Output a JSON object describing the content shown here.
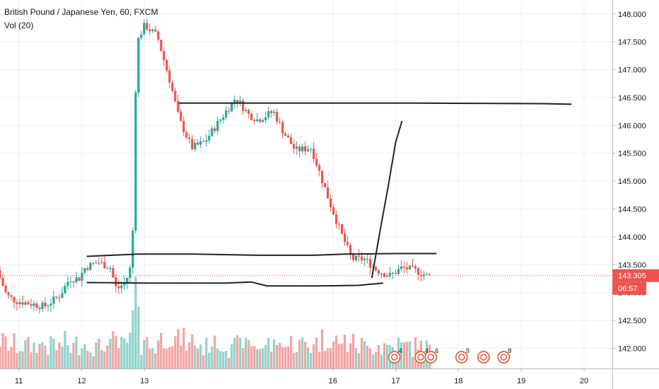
{
  "legend": {
    "symbol": "British Pound / Japanese Yen, 60, FXCM",
    "volume": "Vol (20)"
  },
  "colors": {
    "up": "#26a69a",
    "down": "#ef5350",
    "vol_up": "#8fd3cc",
    "vol_down": "#f4a3a2",
    "line": "#222222",
    "price_tag": "#ef5350",
    "grid": "#eef0f3",
    "event_ring": "#e5734a"
  },
  "chart_data": {
    "type": "candlestick",
    "title": "British Pound / Japanese Yen, 60, FXCM",
    "xlim": [
      10.7,
      20.45
    ],
    "ylim": [
      141.6,
      148.2
    ],
    "y_ticks": [
      142.0,
      142.5,
      143.0,
      143.5,
      144.0,
      144.5,
      145.0,
      145.5,
      146.0,
      146.5,
      147.0,
      147.5,
      148.0
    ],
    "y_tick_labels": [
      "142.000",
      "142.500",
      "143.000",
      "143.500",
      "144.000",
      "144.500",
      "145.000",
      "145.500",
      "146.000",
      "146.500",
      "147.000",
      "147.500",
      "148.000"
    ],
    "x_ticks": [
      11,
      12,
      13,
      16,
      17,
      18,
      19,
      20
    ],
    "x_tick_labels": [
      "11",
      "12",
      "13",
      "16",
      "17",
      "18",
      "19",
      "20"
    ],
    "last_price": 143.305,
    "last_price_label": "143.305",
    "countdown_label": "06:57",
    "grid": true,
    "anchors": [
      [
        10.7,
        143.4
      ],
      [
        10.85,
        142.95
      ],
      [
        11.0,
        142.85
      ],
      [
        11.25,
        142.8
      ],
      [
        11.45,
        142.75
      ],
      [
        11.7,
        142.95
      ],
      [
        11.85,
        143.25
      ],
      [
        12.0,
        143.25
      ],
      [
        12.1,
        143.45
      ],
      [
        12.3,
        143.55
      ],
      [
        12.5,
        143.45
      ],
      [
        12.6,
        143.05
      ],
      [
        12.75,
        143.2
      ],
      [
        12.85,
        143.55
      ],
      [
        12.92,
        147.5
      ],
      [
        13.05,
        147.8
      ],
      [
        13.25,
        147.6
      ],
      [
        13.45,
        146.8
      ],
      [
        13.6,
        146.1
      ],
      [
        13.8,
        145.6
      ],
      [
        14.0,
        145.7
      ],
      [
        14.25,
        146.1
      ],
      [
        14.5,
        146.5
      ],
      [
        14.7,
        146.2
      ],
      [
        14.85,
        146.1
      ],
      [
        15.1,
        146.25
      ],
      [
        15.25,
        145.9
      ],
      [
        15.45,
        145.55
      ],
      [
        15.7,
        145.6
      ],
      [
        15.85,
        145.1
      ],
      [
        16.0,
        144.6
      ],
      [
        16.2,
        144.0
      ],
      [
        16.35,
        143.6
      ],
      [
        16.55,
        143.6
      ],
      [
        16.75,
        143.4
      ],
      [
        16.95,
        143.3
      ],
      [
        17.15,
        143.45
      ],
      [
        17.35,
        143.4
      ],
      [
        17.55,
        143.3
      ]
    ],
    "volume_max": 1,
    "annotations": {
      "resistance_upper": [
        [
          13.55,
          146.4
        ],
        [
          16.2,
          146.4
        ],
        [
          17.3,
          146.4
        ],
        [
          19.4,
          146.39
        ],
        [
          19.8,
          146.38
        ]
      ],
      "resistance_lower": [
        [
          12.08,
          143.65
        ],
        [
          12.9,
          143.69
        ],
        [
          13.8,
          143.69
        ],
        [
          14.8,
          143.67
        ],
        [
          15.7,
          143.67
        ],
        [
          16.2,
          143.69
        ],
        [
          17.0,
          143.7
        ],
        [
          17.65,
          143.7
        ]
      ],
      "support": [
        [
          12.08,
          143.18
        ],
        [
          13.0,
          143.17
        ],
        [
          14.3,
          143.17
        ],
        [
          14.7,
          143.19
        ],
        [
          14.95,
          143.12
        ],
        [
          15.8,
          143.12
        ],
        [
          16.4,
          143.13
        ],
        [
          16.8,
          143.17
        ]
      ],
      "projection": [
        [
          16.62,
          143.26
        ],
        [
          16.75,
          144.1
        ],
        [
          16.88,
          144.9
        ],
        [
          17.0,
          145.7
        ],
        [
          17.1,
          146.08
        ]
      ]
    },
    "events": [
      {
        "x": 16.98,
        "label": "4"
      },
      {
        "x": 17.4,
        "label": "4"
      },
      {
        "x": 17.56,
        "label": "6"
      },
      {
        "x": 18.05,
        "label": "9"
      },
      {
        "x": 18.4,
        "label": ""
      },
      {
        "x": 18.72,
        "label": "8"
      }
    ]
  }
}
